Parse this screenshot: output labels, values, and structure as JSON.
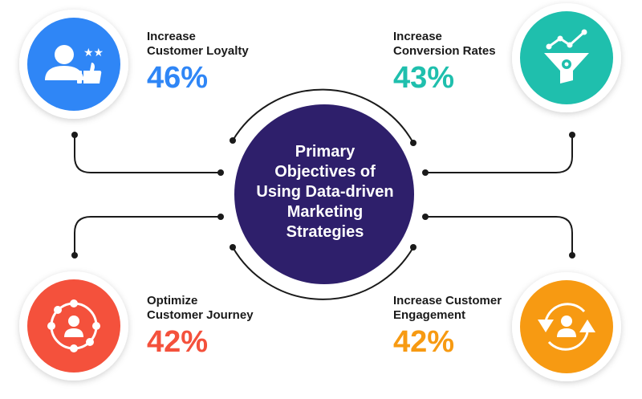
{
  "center": {
    "lines": [
      "Primary",
      "Objectives of",
      "Using Data-driven",
      "Marketing",
      "Strategies"
    ],
    "color": "#2e1f6b"
  },
  "objectives": [
    {
      "id": "loyalty",
      "title_lines": [
        "Increase",
        "Customer Loyalty"
      ],
      "value": "46%",
      "color": "#2f86f6",
      "icon": "user-rating-thumbs-up-icon"
    },
    {
      "id": "conversion",
      "title_lines": [
        "Increase",
        "Conversion Rates"
      ],
      "value": "43%",
      "color": "#1fbfad",
      "icon": "conversion-funnel-icon"
    },
    {
      "id": "journey",
      "title_lines": [
        "Optimize",
        "Customer Journey"
      ],
      "value": "42%",
      "color": "#f4513c",
      "icon": "customer-network-icon"
    },
    {
      "id": "engagement",
      "title_lines": [
        "Increase Customer",
        "Engagement"
      ],
      "value": "42%",
      "color": "#f79a12",
      "icon": "customer-cycle-icon"
    }
  ],
  "colors": {
    "connector": "#1a1a1a",
    "title_text": "#1a1a1a",
    "circle_shadow": "#e6e6e6"
  }
}
